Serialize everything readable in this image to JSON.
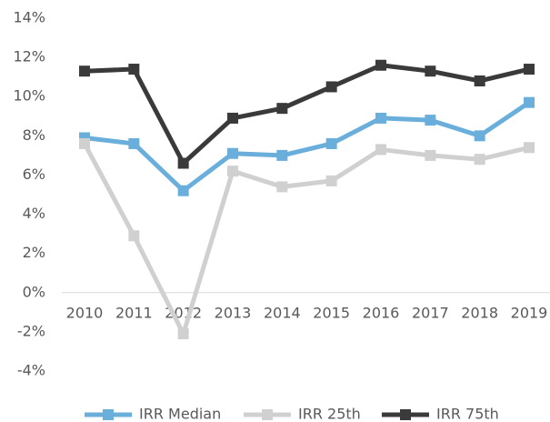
{
  "chart_data": {
    "type": "line",
    "categories": [
      "2010",
      "2011",
      "2012",
      "2013",
      "2014",
      "2015",
      "2016",
      "2017",
      "2018",
      "2019"
    ],
    "series": [
      {
        "name": "IRR Median",
        "color": "#6aaedc",
        "values": [
          7.9,
          7.6,
          5.2,
          7.1,
          7.0,
          7.6,
          8.9,
          8.8,
          8.0,
          9.7
        ]
      },
      {
        "name": "IRR 25th",
        "color": "#d0d0d0",
        "values": [
          7.6,
          2.9,
          -2.1,
          6.2,
          5.4,
          5.7,
          7.3,
          7.0,
          6.8,
          7.4
        ]
      },
      {
        "name": "IRR 75th",
        "color": "#3a3a3a",
        "values": [
          11.3,
          11.4,
          6.6,
          8.9,
          9.4,
          10.5,
          11.6,
          11.3,
          10.8,
          11.4
        ]
      }
    ],
    "ylim": [
      -4,
      14
    ],
    "yticks": [
      {
        "value": -4,
        "label": "-4%"
      },
      {
        "value": -2,
        "label": "-2%"
      },
      {
        "value": 0,
        "label": "0%"
      },
      {
        "value": 2,
        "label": "2%"
      },
      {
        "value": 4,
        "label": "4%"
      },
      {
        "value": 6,
        "label": "6%"
      },
      {
        "value": 8,
        "label": "8%"
      },
      {
        "value": 10,
        "label": "10%"
      },
      {
        "value": 12,
        "label": "12%"
      },
      {
        "value": 14,
        "label": "14%"
      }
    ],
    "grid": false,
    "legend": "bottom"
  }
}
